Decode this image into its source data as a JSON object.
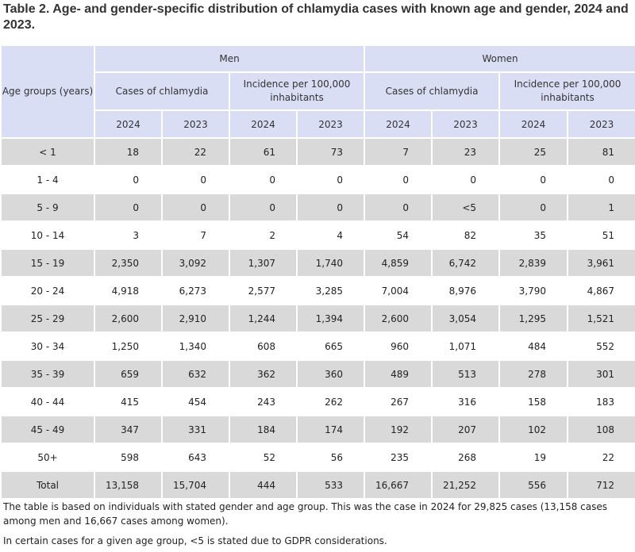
{
  "title": "Table 2. Age- and gender-specific distribution of chlamydia cases with known age and gender, 2024 and 2023.",
  "header": {
    "age_groups": "Age groups (years)",
    "men": "Men",
    "women": "Women",
    "cases": "Cases of chlamydia",
    "incidence": "Incidence per 100,000 inhabitants",
    "years": [
      "2024",
      "2023"
    ]
  },
  "rows": [
    {
      "age": "< 1",
      "values": [
        "18",
        "22",
        "61",
        "73",
        "7",
        "23",
        "25",
        "81"
      ]
    },
    {
      "age": "1 - 4",
      "values": [
        "0",
        "0",
        "0",
        "0",
        "0",
        "0",
        "0",
        "0"
      ]
    },
    {
      "age": "5 - 9",
      "values": [
        "0",
        "0",
        "0",
        "0",
        "0",
        "<5",
        "0",
        "1"
      ]
    },
    {
      "age": "10 - 14",
      "values": [
        "3",
        "7",
        "2",
        "4",
        "54",
        "82",
        "35",
        "51"
      ]
    },
    {
      "age": "15 - 19",
      "values": [
        "2,350",
        "3,092",
        "1,307",
        "1,740",
        "4,859",
        "6,742",
        "2,839",
        "3,961"
      ]
    },
    {
      "age": "20 - 24",
      "values": [
        "4,918",
        "6,273",
        "2,577",
        "3,285",
        "7,004",
        "8,976",
        "3,790",
        "4,867"
      ]
    },
    {
      "age": "25 - 29",
      "values": [
        "2,600",
        "2,910",
        "1,244",
        "1,394",
        "2,600",
        "3,054",
        "1,295",
        "1,521"
      ]
    },
    {
      "age": "30 - 34",
      "values": [
        "1,250",
        "1,340",
        "608",
        "665",
        "960",
        "1,071",
        "484",
        "552"
      ]
    },
    {
      "age": "35 - 39",
      "values": [
        "659",
        "632",
        "362",
        "360",
        "489",
        "513",
        "278",
        "301"
      ]
    },
    {
      "age": "40 - 44",
      "values": [
        "415",
        "454",
        "243",
        "262",
        "267",
        "316",
        "158",
        "183"
      ]
    },
    {
      "age": "45 - 49",
      "values": [
        "347",
        "331",
        "184",
        "174",
        "192",
        "207",
        "102",
        "108"
      ]
    },
    {
      "age": "50+",
      "values": [
        "598",
        "643",
        "52",
        "56",
        "235",
        "268",
        "19",
        "22"
      ]
    },
    {
      "age": "Total",
      "values": [
        "13,158",
        "15,704",
        "444",
        "533",
        "16,667",
        "21,252",
        "556",
        "712"
      ]
    }
  ],
  "footnotes": [
    "The table is based on individuals with stated gender and age group. This was the case in 2024 for 29,825 cases (13,158 cases among men and 16,667 cases among women).",
    "In certain cases for a given age group, <5 is stated due to GDPR considerations."
  ]
}
